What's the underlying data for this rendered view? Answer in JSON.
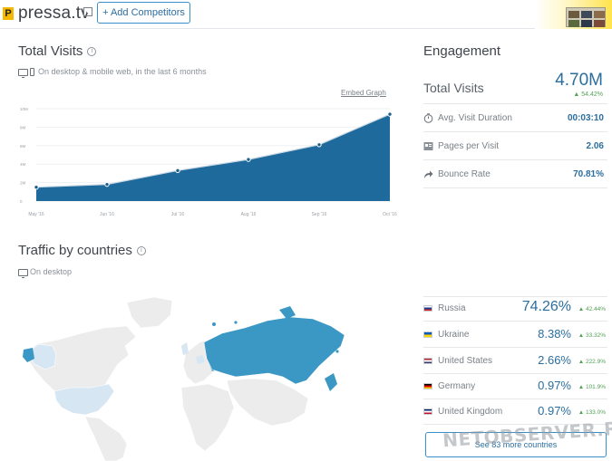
{
  "header": {
    "favicon_letter": "P",
    "site_name": "pressa.tv",
    "add_competitors_label": "+ Add Competitors"
  },
  "total_visits": {
    "title": "Total Visits",
    "subtitle": "On desktop & mobile web, in the last 6 months",
    "embed_link": "Embed Graph"
  },
  "chart_data": {
    "type": "area",
    "categories": [
      "May '16",
      "Jun '16",
      "Jul '16",
      "Aug '16",
      "Sep '16",
      "Oct '16"
    ],
    "series": [
      {
        "values": [
          1.5,
          1.8,
          3.3,
          4.5,
          6.1,
          9.4
        ]
      }
    ],
    "yticks": [
      "10M",
      "8M",
      "6M",
      "4M",
      "2M",
      "0"
    ],
    "ylim": [
      0,
      10
    ],
    "color": "#1f6a9c",
    "grid": true
  },
  "engagement": {
    "title": "Engagement",
    "total_visits_label": "Total Visits",
    "total_visits_value": "4.70M",
    "total_visits_delta": "54.42%",
    "rows": [
      {
        "label": "Avg. Visit Duration",
        "value": "00:03:10",
        "icon": "stopwatch-icon"
      },
      {
        "label": "Pages per Visit",
        "value": "2.06",
        "icon": "pages-icon"
      },
      {
        "label": "Bounce Rate",
        "value": "70.81%",
        "icon": "bounce-arrow-icon"
      }
    ]
  },
  "countries": {
    "title": "Traffic by countries",
    "subtitle": "On desktop",
    "rows": [
      {
        "name": "Russia",
        "share": "74.26%",
        "delta": "42.44%",
        "flag": [
          "#ffffff",
          "#1c3f94",
          "#d52b1e"
        ]
      },
      {
        "name": "Ukraine",
        "share": "8.38%",
        "delta": "33.32%",
        "flag": [
          "#0057b7",
          "#ffd700"
        ]
      },
      {
        "name": "United States",
        "share": "2.66%",
        "delta": "222.9%",
        "flag": [
          "#b22234",
          "#ffffff",
          "#3c3b6e"
        ]
      },
      {
        "name": "Germany",
        "share": "0.97%",
        "delta": "101.9%",
        "flag": [
          "#000000",
          "#dd0000",
          "#ffce00"
        ]
      },
      {
        "name": "United Kingdom",
        "share": "0.97%",
        "delta": "133.0%",
        "flag": [
          "#012169",
          "#ffffff",
          "#c8102e"
        ]
      }
    ],
    "see_more_label": "See 83 more countries"
  },
  "watermark": "NETOBSERVER.RU",
  "colors": {
    "accent": "#2b6e9e",
    "chart_fill": "#1f6a9c",
    "positive": "#53a157",
    "map_highlight": "#3b97c4",
    "map_light": "#d6e6f2",
    "map_base": "#ececec"
  }
}
